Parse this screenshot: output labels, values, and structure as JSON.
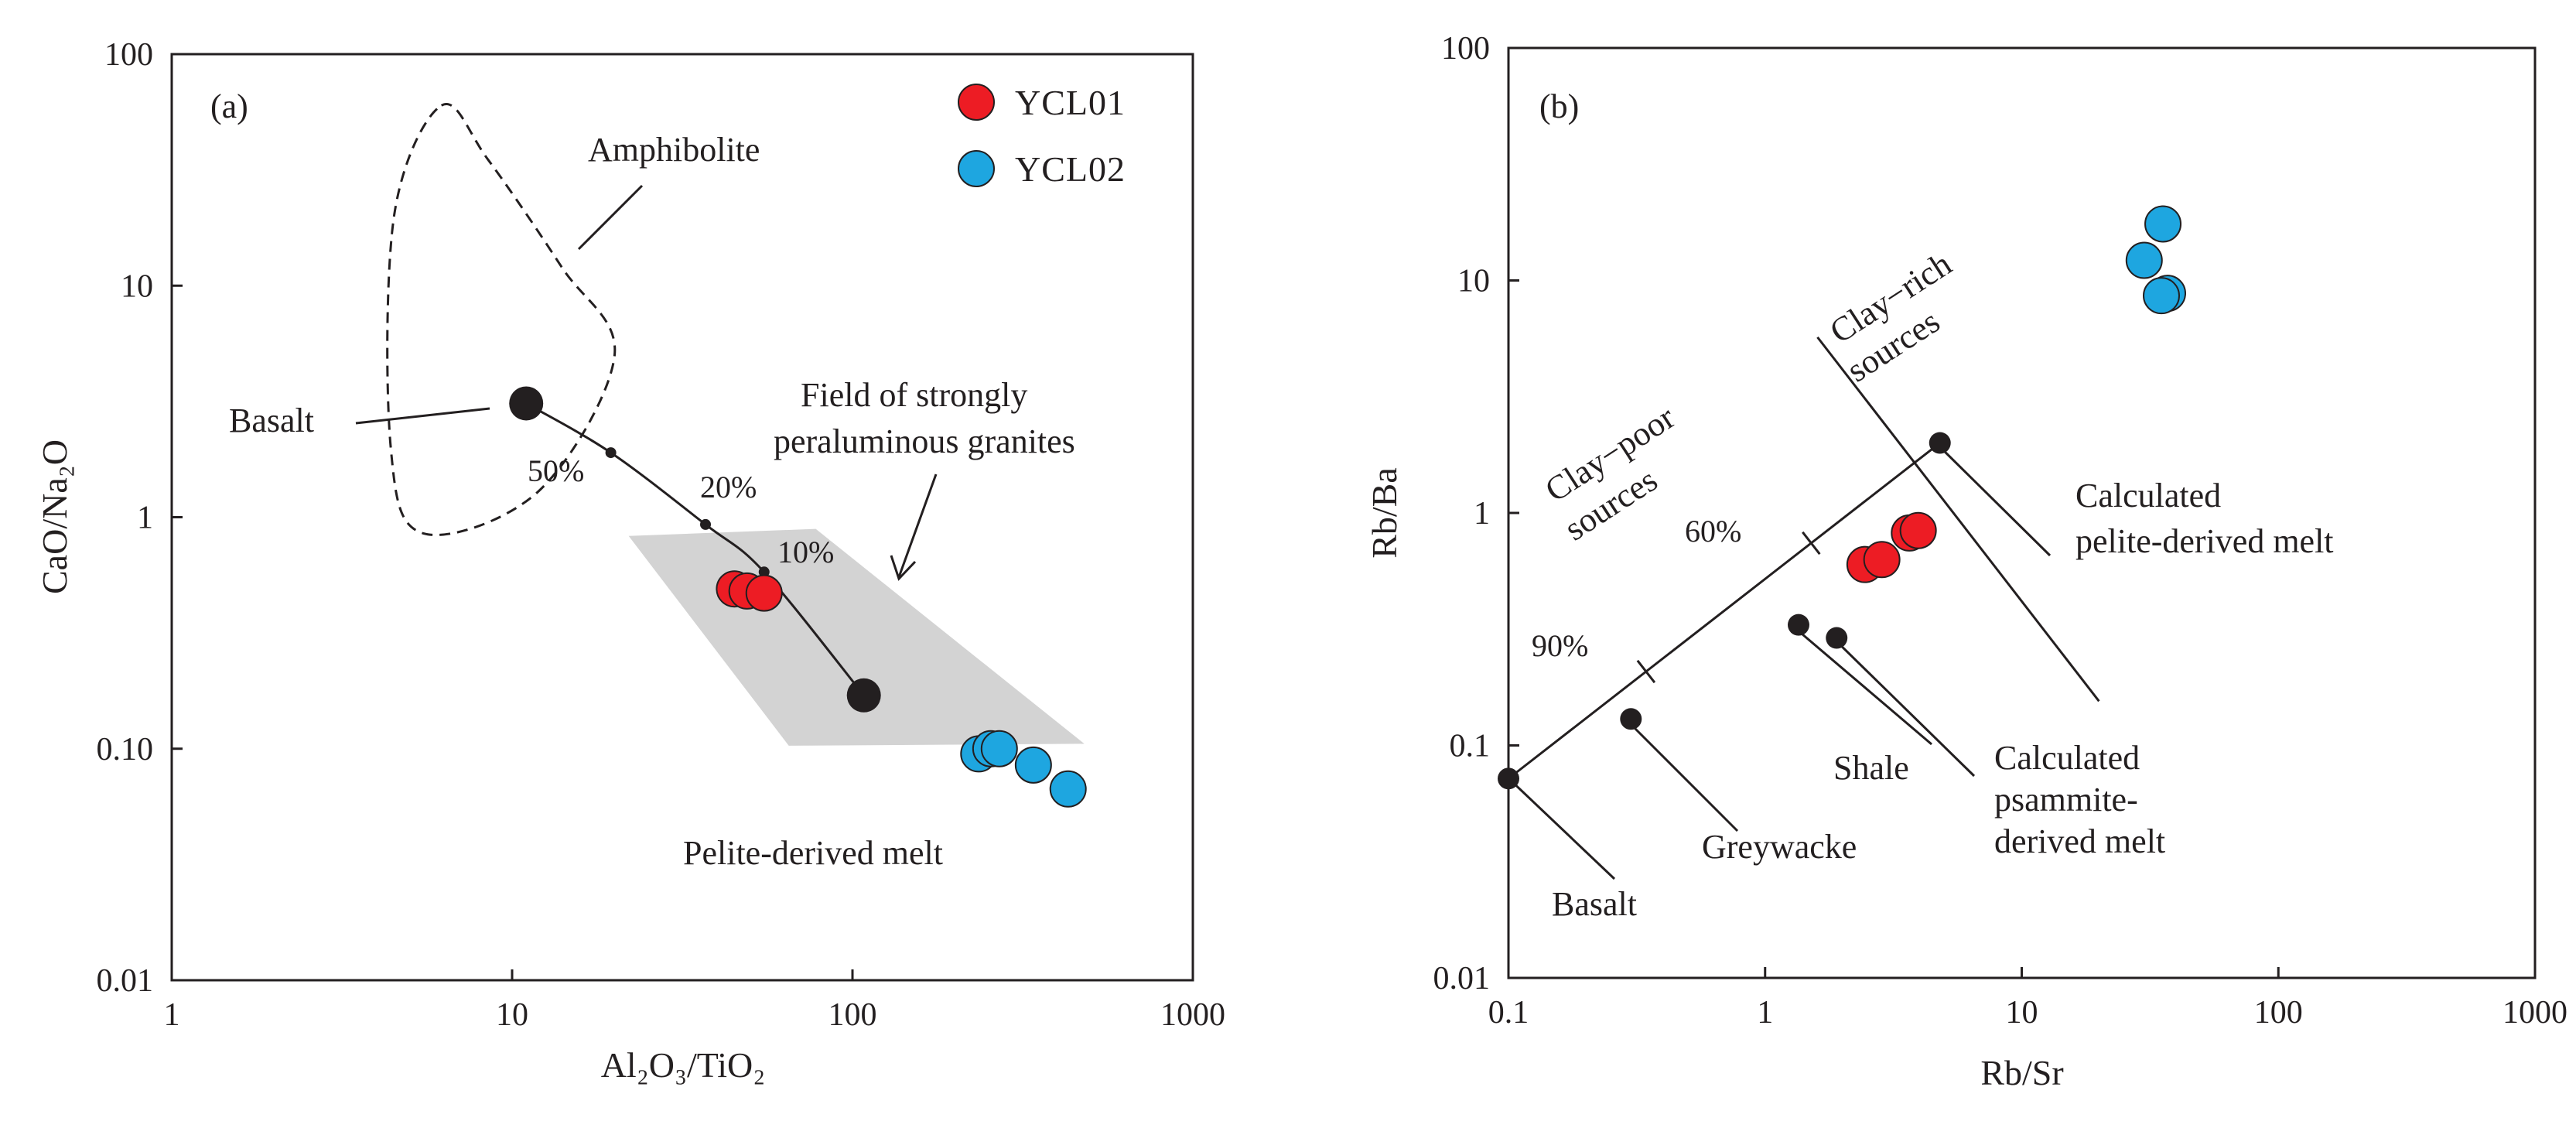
{
  "chart_data": [
    {
      "type": "scatter",
      "panel_label": "(a)",
      "xlabel": "Al₂O₃/TiO₂",
      "ylabel": "CaO/Na₂O",
      "xscale": "log",
      "yscale": "log",
      "xlim": [
        1,
        1000
      ],
      "ylim": [
        0.01,
        100
      ],
      "x_ticks": [
        {
          "value": 1,
          "label": "1"
        },
        {
          "value": 10,
          "label": "10"
        },
        {
          "value": 100,
          "label": "100"
        },
        {
          "value": 1000,
          "label": "1000"
        }
      ],
      "y_ticks": [
        {
          "value": 0.01,
          "label": "0.01"
        },
        {
          "value": 0.1,
          "label": "0.10"
        },
        {
          "value": 1,
          "label": "1"
        },
        {
          "value": 10,
          "label": "10"
        },
        {
          "value": 100,
          "label": "100"
        }
      ],
      "legend_position": "top-right",
      "series": [
        {
          "name": "YCL01",
          "color": "#ed1c24",
          "points": [
            {
              "x": 45,
              "y": 0.49
            },
            {
              "x": 49,
              "y": 0.48
            },
            {
              "x": 55,
              "y": 0.47
            }
          ]
        },
        {
          "name": "YCL02",
          "color": "#1ea6e0",
          "points": [
            {
              "x": 235,
              "y": 0.095
            },
            {
              "x": 255,
              "y": 0.1
            },
            {
              "x": 270,
              "y": 0.1
            },
            {
              "x": 340,
              "y": 0.085
            },
            {
              "x": 430,
              "y": 0.067
            }
          ]
        }
      ],
      "mixing_curve": {
        "points": [
          {
            "x": 11,
            "y": 3.1
          },
          {
            "x": 19.5,
            "y": 1.9
          },
          {
            "x": 37,
            "y": 0.93
          },
          {
            "x": 55,
            "y": 0.58
          },
          {
            "x": 108,
            "y": 0.17
          }
        ],
        "end_members": [
          {
            "x": 11,
            "y": 3.1
          },
          {
            "x": 108,
            "y": 0.17
          }
        ],
        "tick_marks": [
          {
            "x": 19.5,
            "y": 1.9,
            "label": "50%"
          },
          {
            "x": 37,
            "y": 0.93,
            "label": "20%"
          },
          {
            "x": 55,
            "y": 0.58,
            "label": "10%"
          }
        ]
      },
      "field_strongly_peraluminous": [
        {
          "x": 22,
          "y": 0.83
        },
        {
          "x": 78,
          "y": 0.89
        },
        {
          "x": 480,
          "y": 0.105
        },
        {
          "x": 65,
          "y": 0.103
        }
      ],
      "field_amphibolite": [
        {
          "x": 6.2,
          "y": 60
        },
        {
          "x": 8.5,
          "y": 35
        },
        {
          "x": 14,
          "y": 12
        },
        {
          "x": 20,
          "y": 5
        },
        {
          "x": 12,
          "y": 1.3
        },
        {
          "x": 5.5,
          "y": 0.85
        },
        {
          "x": 4.4,
          "y": 2
        },
        {
          "x": 4.5,
          "y": 20
        }
      ],
      "annotations": {
        "amphibolite": "Amphibolite",
        "basalt": "Basalt",
        "field_line1": "Field of strongly",
        "field_line2": "peraluminous granites",
        "pelite_melt": "Pelite-derived melt"
      }
    },
    {
      "type": "scatter",
      "panel_label": "(b)",
      "xlabel": "Rb/Sr",
      "ylabel": "Rb/Ba",
      "xscale": "log",
      "yscale": "log",
      "xlim": [
        0.1,
        1000
      ],
      "ylim": [
        0.01,
        100
      ],
      "x_ticks": [
        {
          "value": 0.1,
          "label": "0.1"
        },
        {
          "value": 1,
          "label": "1"
        },
        {
          "value": 10,
          "label": "10"
        },
        {
          "value": 100,
          "label": "100"
        },
        {
          "value": 1000,
          "label": "1000"
        }
      ],
      "y_ticks": [
        {
          "value": 0.01,
          "label": "0.01"
        },
        {
          "value": 0.1,
          "label": "0.1"
        },
        {
          "value": 1,
          "label": "1"
        },
        {
          "value": 10,
          "label": "10"
        },
        {
          "value": 100,
          "label": "100"
        }
      ],
      "series": [
        {
          "name": "YCL01",
          "color": "#ed1c24",
          "points": [
            {
              "x": 2.45,
              "y": 0.6
            },
            {
              "x": 2.85,
              "y": 0.63
            },
            {
              "x": 3.65,
              "y": 0.82
            },
            {
              "x": 3.95,
              "y": 0.84
            }
          ]
        },
        {
          "name": "YCL02",
          "color": "#1ea6e0",
          "points": [
            {
              "x": 35.5,
              "y": 17.5
            },
            {
              "x": 30,
              "y": 12.2
            },
            {
              "x": 37,
              "y": 8.8
            },
            {
              "x": 35,
              "y": 8.6
            }
          ]
        }
      ],
      "reference_points": [
        {
          "name": "Basalt",
          "x": 0.1,
          "y": 0.072
        },
        {
          "name": "Greywacke",
          "x": 0.3,
          "y": 0.13
        },
        {
          "name": "Shale",
          "x": 1.35,
          "y": 0.33
        },
        {
          "name": "Calculated psammite-derived melt",
          "x": 1.9,
          "y": 0.29
        },
        {
          "name": "Calculated pelite-derived melt",
          "x": 4.8,
          "y": 2.0
        }
      ],
      "mixing_line": {
        "from": {
          "x": 0.1,
          "y": 0.072
        },
        "to": {
          "x": 4.8,
          "y": 2.0
        },
        "tick_marks": [
          {
            "x": 0.32,
            "y": 0.23,
            "label": "90%"
          },
          {
            "x": 1.5,
            "y": 0.75,
            "label": "60%"
          }
        ]
      },
      "division_line": {
        "from": {
          "x": 1.6,
          "y": 5.7
        },
        "to": {
          "x": 20,
          "y": 0.155
        }
      },
      "annotations": {
        "clay_rich_1": "Clay−rich",
        "clay_rich_2": "sources",
        "clay_poor_1": "Clay−poor",
        "clay_poor_2": "sources",
        "calc_pelite_1": "Calculated",
        "calc_pelite_2": "pelite-derived melt",
        "calc_psammite_1": "Calculated",
        "calc_psammite_2": "psammite-",
        "calc_psammite_3": "derived melt",
        "shale": "Shale",
        "greywacke": "Greywacke",
        "basalt": "Basalt"
      }
    }
  ]
}
